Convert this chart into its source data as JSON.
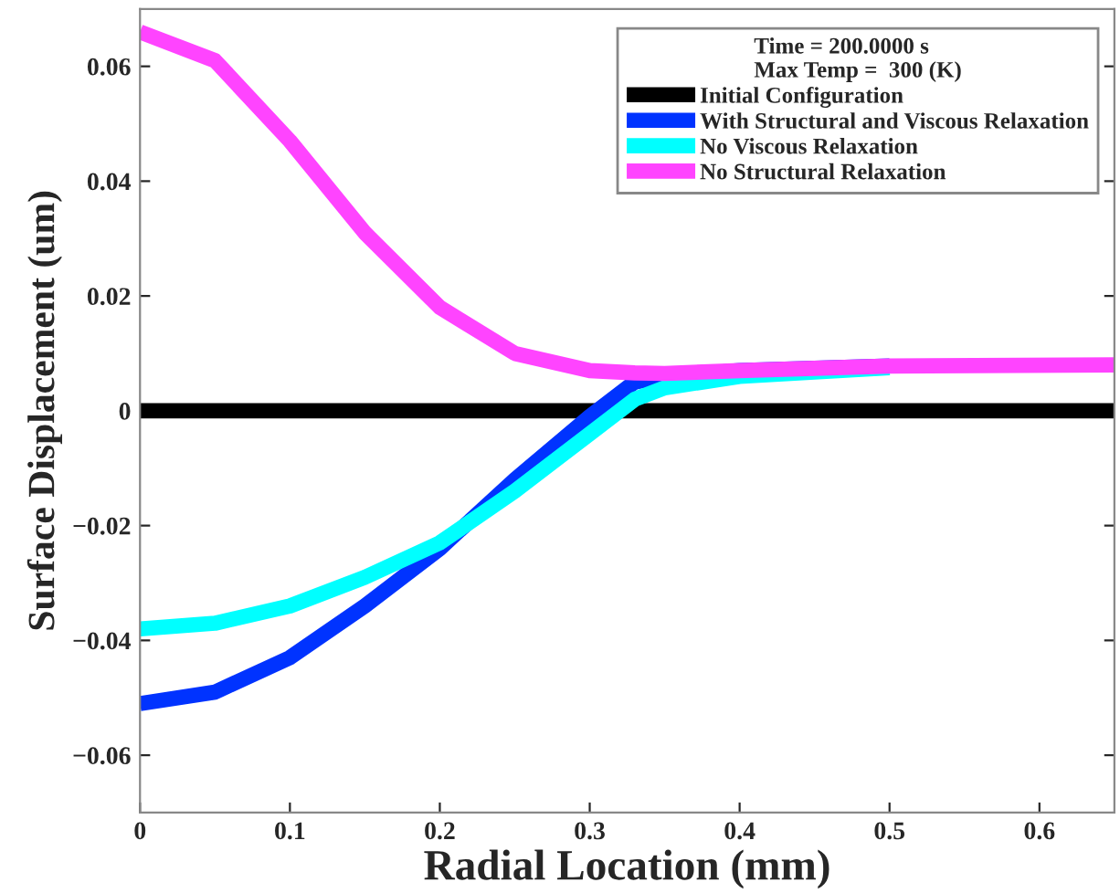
{
  "chart_data": {
    "type": "line",
    "xlabel": "Radial Location (mm)",
    "ylabel": "Surface Displacement (um)",
    "legend_title": "Time = 200.0000 s\nMax Temp =  300 (K)",
    "x": [
      0,
      0.05,
      0.1,
      0.15,
      0.2,
      0.25,
      0.3,
      0.33,
      0.35,
      0.4,
      0.5,
      0.65
    ],
    "series": [
      {
        "name": "Initial Configuration",
        "color": "#000000",
        "values": [
          0,
          0,
          0,
          0,
          0,
          0,
          0,
          0,
          0,
          0,
          0,
          0
        ]
      },
      {
        "name": "With Structural and Viscous Relaxation",
        "color": "#0033ff",
        "values": [
          -0.051,
          -0.049,
          -0.043,
          -0.034,
          -0.024,
          -0.012,
          -0.001,
          0.005,
          0.006,
          0.007,
          0.0078,
          null
        ]
      },
      {
        "name": "No Viscous Relaxation",
        "color": "#00ffff",
        "values": [
          -0.038,
          -0.037,
          -0.034,
          -0.029,
          -0.023,
          -0.014,
          -0.004,
          0.002,
          0.004,
          0.006,
          0.0075,
          null
        ]
      },
      {
        "name": "No Structural Relaxation",
        "color": "#ff44ff",
        "values": [
          0.066,
          0.061,
          0.047,
          0.031,
          0.018,
          0.01,
          0.007,
          0.0066,
          0.0065,
          0.007,
          0.0078,
          0.008
        ]
      }
    ],
    "xlim": [
      0,
      0.65
    ],
    "xticks": [
      0,
      0.1,
      0.2,
      0.3,
      0.4,
      0.5,
      0.6
    ],
    "ylim": [
      -0.07,
      0.07
    ],
    "yticks": [
      -0.06,
      -0.04,
      -0.02,
      0,
      0.02,
      0.04,
      0.06
    ],
    "grid": false,
    "legend": "top right",
    "marker": "none",
    "line_style": "solid"
  }
}
